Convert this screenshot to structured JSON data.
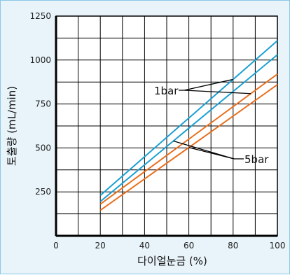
{
  "colors": {
    "background": "#e8f4fa",
    "frame": "#8cc8e6",
    "plot_bg": "#ffffff",
    "grid": "#000000",
    "blue": "#1aa0d2",
    "orange": "#e8701e"
  },
  "chart_data": {
    "type": "line",
    "title": "",
    "xlabel": "다이얼눈금 (%)",
    "ylabel": "토출량 (mL/min)",
    "xlim": [
      0,
      100
    ],
    "ylim": [
      0,
      1250
    ],
    "xticks": [
      0,
      20,
      40,
      60,
      80,
      100
    ],
    "yticks": [
      250,
      500,
      750,
      1000,
      1250
    ],
    "grid": true,
    "series": [
      {
        "group": "1bar",
        "color": "#1aa0d2",
        "x": [
          20,
          100
        ],
        "y": [
          230,
          1110
        ]
      },
      {
        "group": "1bar",
        "color": "#1aa0d2",
        "x": [
          20,
          100
        ],
        "y": [
          195,
          1030
        ]
      },
      {
        "group": "5bar",
        "color": "#e8701e",
        "x": [
          20,
          100
        ],
        "y": [
          180,
          920
        ]
      },
      {
        "group": "5bar",
        "color": "#e8701e",
        "x": [
          20,
          100
        ],
        "y": [
          145,
          860
        ]
      }
    ],
    "annotations": [
      {
        "text": "1bar",
        "group": "1bar"
      },
      {
        "text": "5bar",
        "group": "5bar"
      }
    ]
  }
}
